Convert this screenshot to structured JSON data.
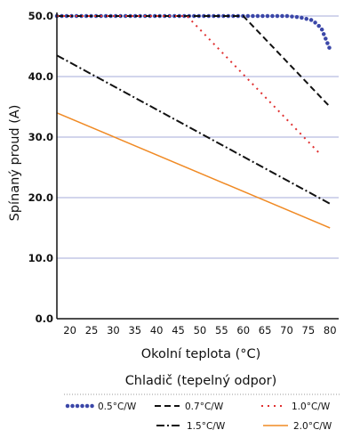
{
  "chart_data": {
    "type": "line",
    "xlabel": "Okolní teplota (°C)",
    "ylabel": "Spínaný proud (A)",
    "xlim": [
      17,
      82
    ],
    "ylim": [
      0,
      50
    ],
    "x_ticks": [
      "20",
      "25",
      "30",
      "35",
      "40",
      "45",
      "50",
      "55",
      "60",
      "65",
      "70",
      "75",
      "80"
    ],
    "y_ticks": [
      "0.0",
      "10.0",
      "20.0",
      "30.0",
      "40.0",
      "50.0"
    ],
    "grid": "horizontal",
    "legend_title": "Chladič (tepelný odpor)",
    "legend_position": "bottom",
    "series": [
      {
        "name": "0.5°C/W",
        "style": "dots",
        "color": "#3b47a8",
        "points": [
          [
            17,
            50
          ],
          [
            70,
            50
          ],
          [
            73,
            49.8
          ],
          [
            76,
            49.3
          ],
          [
            78,
            48
          ],
          [
            80,
            44.5
          ]
        ]
      },
      {
        "name": "0.7°C/W",
        "style": "dashed",
        "color": "#111111",
        "points": [
          [
            17,
            50
          ],
          [
            60,
            50
          ],
          [
            80,
            35
          ]
        ]
      },
      {
        "name": "1.0°C/W",
        "style": "dotted",
        "color": "#e03030",
        "points": [
          [
            17,
            50
          ],
          [
            47,
            50
          ],
          [
            78,
            27
          ]
        ]
      },
      {
        "name": "1.5°C/W",
        "style": "dashdot",
        "color": "#111111",
        "points": [
          [
            17,
            43.5
          ],
          [
            80,
            19
          ]
        ]
      },
      {
        "name": "2.0°C/W",
        "style": "solid",
        "color": "#f08a24",
        "points": [
          [
            17,
            34
          ],
          [
            80,
            15
          ]
        ]
      }
    ]
  }
}
